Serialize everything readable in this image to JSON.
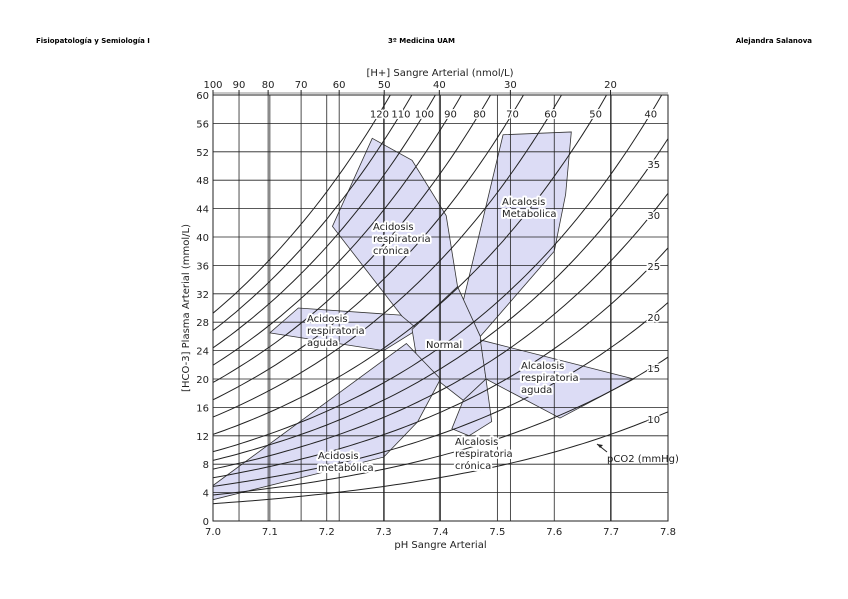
{
  "header": {
    "left": "Fisiopatología y Semiología I",
    "center": "3º Medicina UAM",
    "right": "Alejandra Salanova"
  },
  "chart_data": {
    "type": "nomogram",
    "x_label": "pH Sangre Arterial",
    "y_label": "[HCO-3] Plasma Arterial (mmol/L)",
    "x2_label": "[H+] Sangre Arterial (nmol/L)",
    "xlim": [
      7.0,
      7.8
    ],
    "xticks": [
      {
        "value": 7.0,
        "label": "7.0"
      },
      7.1,
      7.2,
      7.3,
      7.4,
      7.5,
      7.6,
      7.7,
      7.8
    ],
    "ylim": [
      0,
      60
    ],
    "yticks": [
      0,
      4,
      8,
      12,
      16,
      20,
      24,
      28,
      32,
      36,
      40,
      44,
      48,
      52,
      56,
      60
    ],
    "x2ticks": [
      100,
      90,
      80,
      70,
      60,
      50,
      40,
      30,
      20
    ],
    "grid": true,
    "isopleths": {
      "name": "pCO2 (mmHg)",
      "values": [
        120,
        110,
        100,
        90,
        80,
        70,
        60,
        50,
        40,
        35,
        30,
        25,
        20,
        15,
        10
      ]
    },
    "region_color": "#dcdcf5",
    "regions": [
      {
        "label": [
          "Acidosis",
          "respiratoria",
          "crónica"
        ],
        "x": [
          7.28,
          7.35,
          7.41,
          7.43,
          7.35,
          7.21
        ],
        "y": [
          53.9,
          50.8,
          43,
          33,
          27,
          41.5
        ]
      },
      {
        "label": [
          "Alcalosis",
          "Metabolica"
        ],
        "x": [
          7.51,
          7.63,
          7.62,
          7.6,
          7.47,
          7.44,
          7.47
        ],
        "y": [
          54.4,
          54.8,
          46,
          38,
          26,
          31,
          41
        ]
      },
      {
        "label": [
          "Acidosis",
          "respiratoria",
          "aguda"
        ],
        "x": [
          7.1,
          7.15,
          7.33,
          7.36,
          7.3
        ],
        "y": [
          26.5,
          30,
          29,
          27,
          24
        ]
      },
      {
        "label": [
          "Normal"
        ],
        "x": [
          7.35,
          7.43,
          7.47,
          7.48,
          7.44,
          7.36
        ],
        "y": [
          27,
          33,
          26,
          20,
          17,
          22
        ]
      },
      {
        "label": [
          "Alcalosis",
          "respiratoria",
          "aguda"
        ],
        "x": [
          7.47,
          7.74,
          7.61,
          7.48
        ],
        "y": [
          25.5,
          20,
          14.5,
          20
        ]
      },
      {
        "label": [
          "Alcalosis",
          "respiratoria",
          "crónica"
        ],
        "x": [
          7.44,
          7.48,
          7.49,
          7.45,
          7.42
        ],
        "y": [
          17,
          20,
          14,
          12,
          13
        ]
      },
      {
        "label": [
          "Acidosis",
          "metabólica"
        ],
        "x": [
          7.0,
          7.34,
          7.4,
          7.36,
          7.3,
          7.0
        ],
        "y": [
          5,
          25,
          20,
          14,
          9,
          3
        ]
      }
    ]
  }
}
